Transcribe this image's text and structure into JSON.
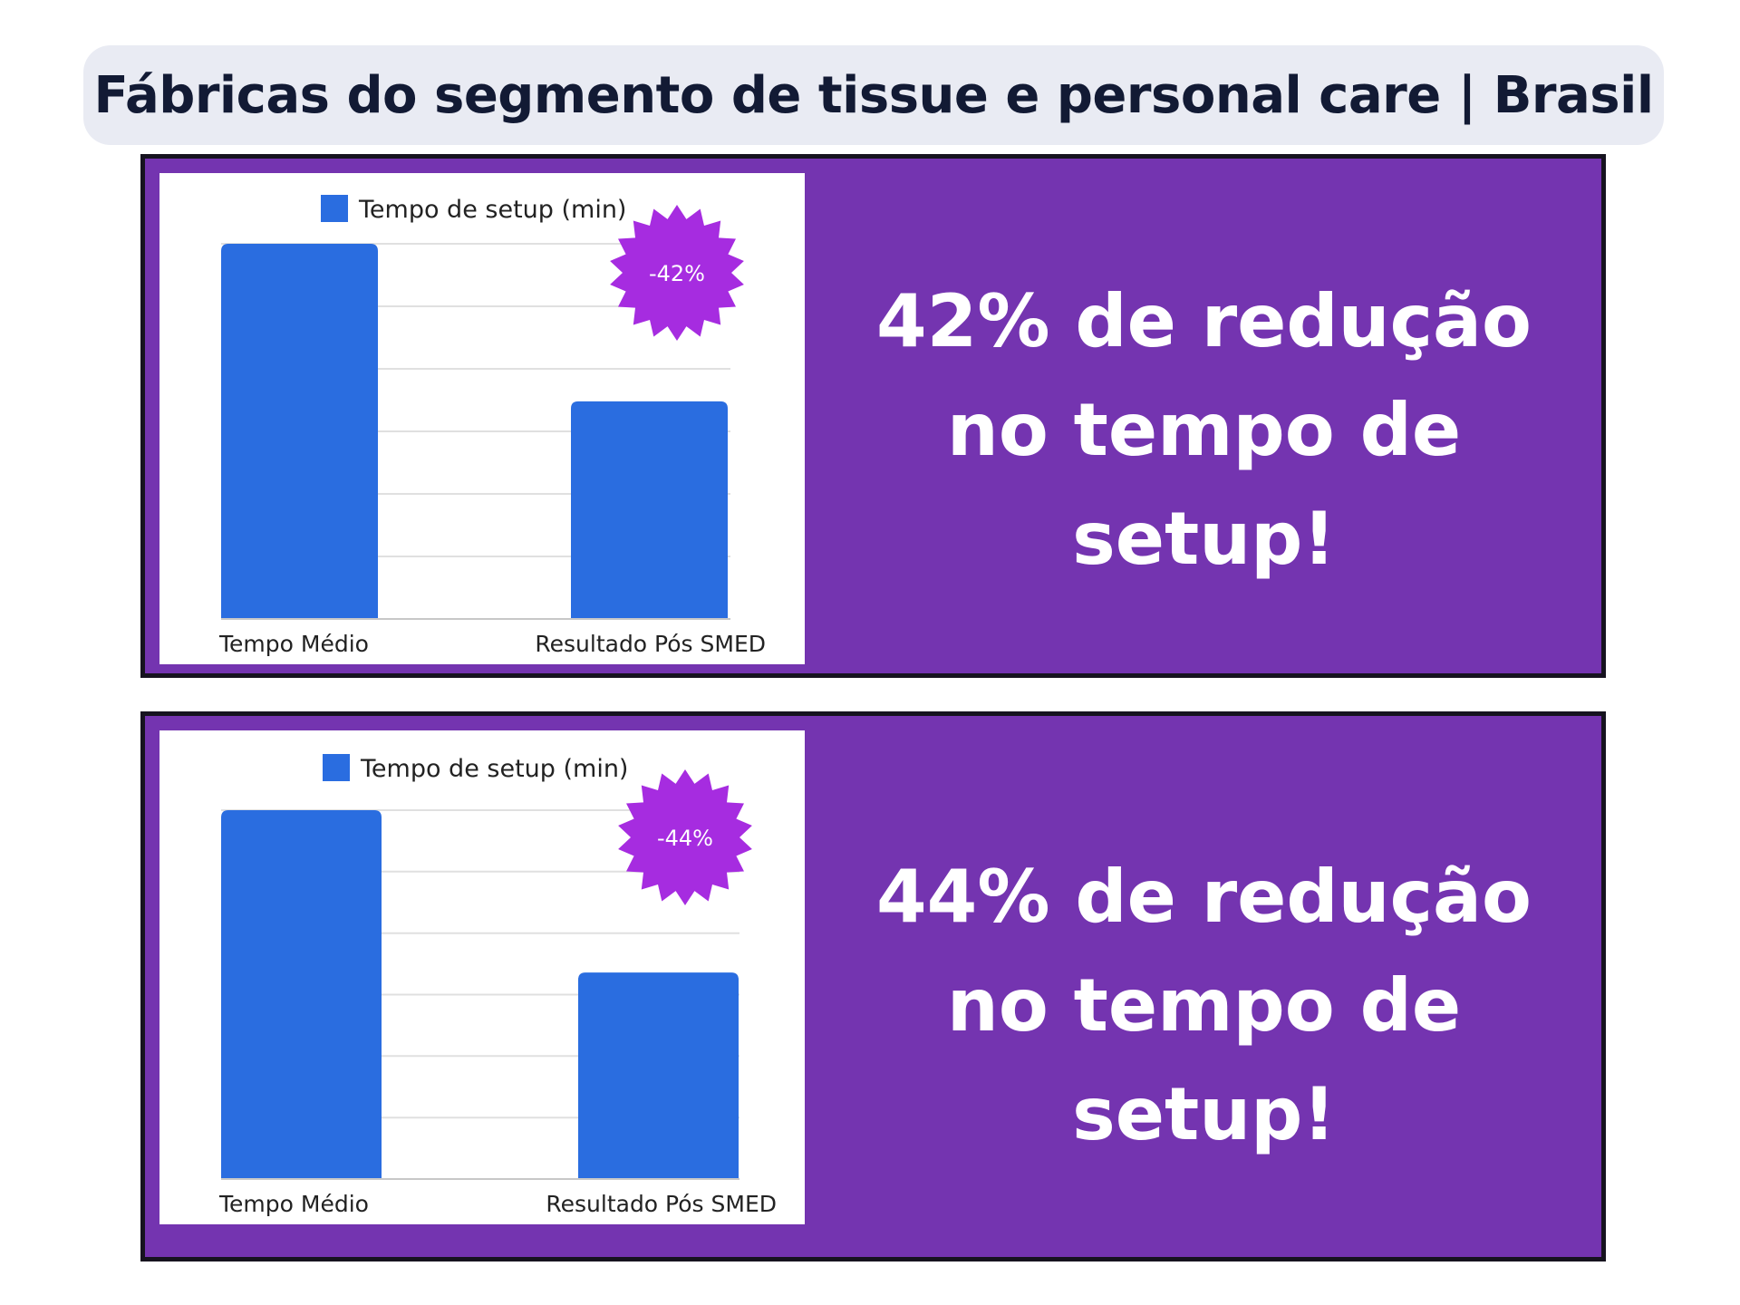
{
  "title": "Fábricas do segmento de tissue e personal care | Brasil",
  "colors": {
    "bar": "#2a6de0",
    "badge": "#a62ce0",
    "panel": "#7434b0",
    "text_light": "#ffffff"
  },
  "panels": [
    {
      "headline_lines": [
        "42% de redução",
        "no tempo de",
        "setup!"
      ]
    },
    {
      "headline_lines": [
        "44% de redução",
        "no tempo de",
        "setup!"
      ]
    }
  ],
  "chart_data": [
    {
      "type": "bar",
      "categories": [
        "Tempo Médio",
        "Resultado Pós SMED"
      ],
      "series": [
        {
          "name": "Tempo de setup (min)",
          "values": [
            100,
            58
          ]
        }
      ],
      "ylim": [
        0,
        100
      ],
      "grid": true,
      "legend": "top",
      "badge": "-42%"
    },
    {
      "type": "bar",
      "categories": [
        "Tempo Médio",
        "Resultado Pós SMED"
      ],
      "series": [
        {
          "name": "Tempo de setup (min)",
          "values": [
            100,
            56
          ]
        }
      ],
      "ylim": [
        0,
        100
      ],
      "grid": true,
      "legend": "top",
      "badge": "-44%"
    }
  ]
}
